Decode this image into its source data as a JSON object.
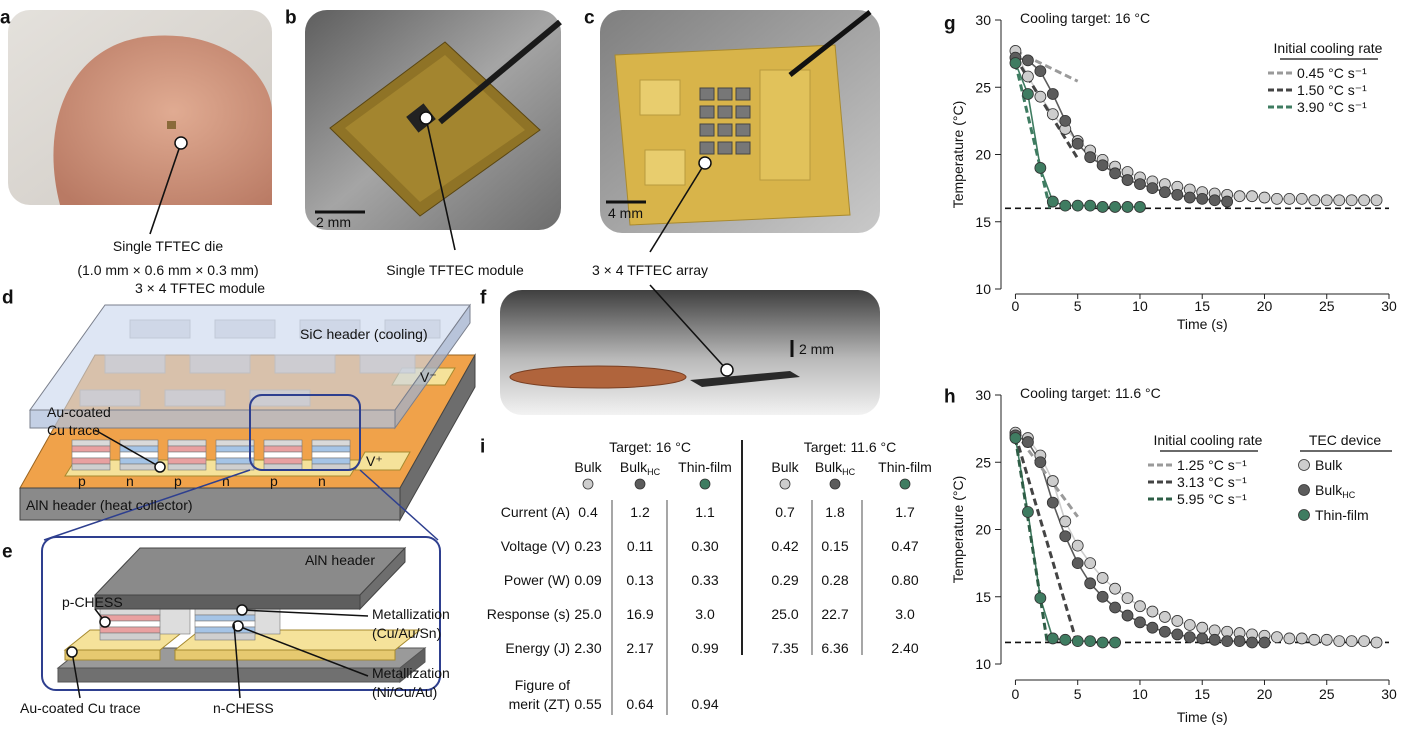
{
  "panel_labels": [
    "a",
    "b",
    "c",
    "d",
    "e",
    "f",
    "g",
    "h",
    "i"
  ],
  "photos": {
    "a": {
      "caption": [
        "Single TFTEC die",
        "(1.0 mm × 0.6 mm × 0.3 mm)"
      ]
    },
    "b": {
      "scale_bar": "2 mm",
      "caption": "Single TFTEC module"
    },
    "c": {
      "scale_bar": "4 mm",
      "caption": "3 × 4 TFTEC array"
    },
    "f": {
      "scale_bar": "2 mm"
    }
  },
  "diagram_d": {
    "title": "3 × 4 TFTEC module",
    "top_header": "SiC header (cooling)",
    "trace": [
      "Au-coated",
      "Cu trace"
    ],
    "v_minus": "V⁻",
    "v_plus": "V⁺",
    "legs": [
      "p",
      "n",
      "p",
      "n",
      "p",
      "n"
    ],
    "bottom_header": "AlN header (heat collector)"
  },
  "diagram_e": {
    "top_header": "AlN header",
    "p_leg": "p-CHESS",
    "n_leg": "n-CHESS",
    "metallization_top": [
      "Metallization",
      "(Cu/Au/Sn)"
    ],
    "metallization_bottom": [
      "Metallization",
      "(Ni/Cu/Au)"
    ],
    "trace": "Au-coated Cu trace"
  },
  "table": {
    "group_headers": [
      "Target: 16 °C",
      "Target: 11.6 °C"
    ],
    "columns": [
      {
        "name": "Bulk",
        "color": "#cdcdcd"
      },
      {
        "name": "Bulk",
        "subscript": "HC",
        "color": "#5c5c5c"
      },
      {
        "name": "Thin-film",
        "color": "#3f7c61"
      },
      {
        "name": "Bulk",
        "color": "#cdcdcd"
      },
      {
        "name": "Bulk",
        "subscript": "HC",
        "color": "#5c5c5c"
      },
      {
        "name": "Thin-film",
        "color": "#3f7c61"
      }
    ],
    "rows": [
      {
        "label": [
          "Current (A)"
        ],
        "cells": [
          "0.4",
          "1.2",
          "1.1",
          "0.7",
          "1.8",
          "1.7"
        ]
      },
      {
        "label": [
          "Voltage (V)"
        ],
        "cells": [
          "0.23",
          "0.11",
          "0.30",
          "0.42",
          "0.15",
          "0.47"
        ]
      },
      {
        "label": [
          "Power (W)"
        ],
        "cells": [
          "0.09",
          "0.13",
          "0.33",
          "0.29",
          "0.28",
          "0.80"
        ]
      },
      {
        "label": [
          "Response (s)"
        ],
        "cells": [
          "25.0",
          "16.9",
          "3.0",
          "25.0",
          "22.7",
          "3.0"
        ]
      },
      {
        "label": [
          "Energy (J)"
        ],
        "cells": [
          "2.30",
          "2.17",
          "0.99",
          "7.35",
          "6.36",
          "2.40"
        ]
      },
      {
        "label": [
          "Figure of",
          "merit (ZT)"
        ],
        "cells": [
          "0.55",
          "0.64",
          "0.94"
        ]
      }
    ]
  },
  "chart_data": [
    {
      "type": "scatter",
      "title": "Cooling target: 16 °C",
      "x_label": "Time (s)",
      "y_label": "Temperature (°C)",
      "xlim": [
        -1,
        30
      ],
      "xticks": [
        0,
        5,
        10,
        15,
        20,
        25,
        30
      ],
      "ylim": [
        10,
        30
      ],
      "yticks": [
        10,
        15,
        20,
        25,
        30
      ],
      "target": 16,
      "legend_title": "Initial cooling rate",
      "series": [
        {
          "color": "#cdcdcd",
          "rate": 0.45,
          "rate_label": "0.45 °C s⁻¹",
          "rate_color": "#9a9a9a",
          "x": [
            0,
            1,
            2,
            3,
            4,
            5,
            6,
            7,
            8,
            9,
            10,
            11,
            12,
            13,
            14,
            15,
            16,
            17,
            18,
            19,
            20,
            21,
            22,
            23,
            24,
            25,
            26,
            27,
            28,
            29
          ],
          "values": [
            27.7,
            25.8,
            24.3,
            23.0,
            21.9,
            21.0,
            20.3,
            19.6,
            19.1,
            18.7,
            18.3,
            18.0,
            17.8,
            17.6,
            17.4,
            17.2,
            17.1,
            17.0,
            16.9,
            16.9,
            16.8,
            16.7,
            16.7,
            16.7,
            16.6,
            16.6,
            16.6,
            16.6,
            16.6,
            16.6
          ]
        },
        {
          "color": "#5c5c5c",
          "rate": 1.5,
          "rate_label": "1.50 °C s⁻¹",
          "rate_color": "#444444",
          "x": [
            0,
            1,
            2,
            3,
            4,
            5,
            6,
            7,
            8,
            9,
            10,
            11,
            12,
            13,
            14,
            15,
            16,
            17
          ],
          "values": [
            27.2,
            27.0,
            26.2,
            24.5,
            22.5,
            20.8,
            19.8,
            19.2,
            18.6,
            18.1,
            17.8,
            17.5,
            17.2,
            17.0,
            16.8,
            16.7,
            16.6,
            16.5
          ]
        },
        {
          "color": "#3f7c61",
          "rate": 3.9,
          "rate_label": "3.90 °C s⁻¹",
          "rate_color": "#3f7c61",
          "x": [
            0,
            1,
            2,
            3,
            4,
            5,
            6,
            7,
            8,
            9,
            10
          ],
          "values": [
            26.8,
            24.5,
            19.0,
            16.5,
            16.2,
            16.2,
            16.2,
            16.1,
            16.1,
            16.1,
            16.1
          ]
        }
      ]
    },
    {
      "type": "scatter",
      "title": "Cooling target: 11.6 °C",
      "x_label": "Time (s)",
      "y_label": "Temperature (°C)",
      "xlim": [
        -1,
        30
      ],
      "xticks": [
        0,
        5,
        10,
        15,
        20,
        25,
        30
      ],
      "ylim": [
        10,
        30
      ],
      "yticks": [
        10,
        15,
        20,
        25,
        30
      ],
      "target": 11.6,
      "legend_title": "Initial cooling rate",
      "device_legend_title": "TEC device",
      "series": [
        {
          "name": "Bulk",
          "color": "#cdcdcd",
          "rate": 1.25,
          "rate_label": "1.25 °C s⁻¹",
          "rate_color": "#9a9a9a",
          "x": [
            0,
            1,
            2,
            3,
            4,
            5,
            6,
            7,
            8,
            9,
            10,
            11,
            12,
            13,
            14,
            15,
            16,
            17,
            18,
            19,
            20,
            21,
            22,
            23,
            24,
            25,
            26,
            27,
            28,
            29
          ],
          "values": [
            27.2,
            26.8,
            25.5,
            23.6,
            20.6,
            18.8,
            17.5,
            16.4,
            15.6,
            14.9,
            14.3,
            13.9,
            13.5,
            13.2,
            12.9,
            12.7,
            12.5,
            12.4,
            12.3,
            12.2,
            12.1,
            12.0,
            11.9,
            11.9,
            11.8,
            11.8,
            11.7,
            11.7,
            11.7,
            11.6
          ]
        },
        {
          "name": "Bulk",
          "subscript": "HC",
          "color": "#5c5c5c",
          "rate": 3.13,
          "rate_label": "3.13 °C s⁻¹",
          "rate_color": "#444444",
          "x": [
            0,
            1,
            2,
            3,
            4,
            5,
            6,
            7,
            8,
            9,
            10,
            11,
            12,
            13,
            14,
            15,
            16,
            17,
            18,
            19,
            20
          ],
          "values": [
            27.0,
            26.5,
            25.0,
            22.0,
            19.5,
            17.5,
            16.0,
            15.0,
            14.2,
            13.6,
            13.1,
            12.7,
            12.4,
            12.2,
            12.0,
            11.9,
            11.8,
            11.7,
            11.7,
            11.6,
            11.6
          ]
        },
        {
          "name": "Thin-film",
          "color": "#3f7c61",
          "rate": 5.95,
          "rate_label": "5.95 °C s⁻¹",
          "rate_color": "#2e5e46",
          "x": [
            0,
            1,
            2,
            3,
            4,
            5,
            6,
            7,
            8
          ],
          "values": [
            26.8,
            21.3,
            14.9,
            11.9,
            11.8,
            11.7,
            11.7,
            11.6,
            11.6
          ]
        }
      ]
    }
  ]
}
